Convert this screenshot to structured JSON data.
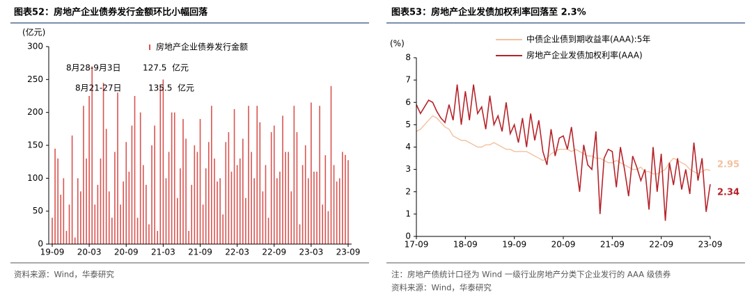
{
  "chart_data": [
    {
      "type": "bar",
      "title": "图表52：房地产企业债券发行金额环比小幅回落",
      "y_axis_label": "(亿元)",
      "categories": [
        "19-09",
        null,
        null,
        null,
        null,
        null,
        null,
        null,
        null,
        null,
        null,
        null,
        null,
        "20-03",
        null,
        null,
        null,
        null,
        null,
        null,
        null,
        null,
        null,
        null,
        null,
        null,
        "20-09",
        null,
        null,
        null,
        null,
        null,
        null,
        null,
        null,
        null,
        null,
        null,
        null,
        "21-03",
        null,
        null,
        null,
        null,
        null,
        null,
        null,
        null,
        null,
        null,
        null,
        null,
        "21-09",
        null,
        null,
        null,
        null,
        null,
        null,
        null,
        null,
        null,
        null,
        null,
        null,
        "22-03",
        null,
        null,
        null,
        null,
        null,
        null,
        null,
        null,
        null,
        null,
        null,
        null,
        "22-09",
        null,
        null,
        null,
        null,
        null,
        null,
        null,
        null,
        null,
        null,
        null,
        null,
        "23-03",
        null,
        null,
        null,
        null,
        null,
        null,
        null,
        null,
        null,
        null,
        null,
        null,
        "23-09"
      ],
      "series": [
        {
          "name": "房地产企业债券发行金额",
          "color": "#d9534f",
          "values": [
            40,
            145,
            130,
            75,
            100,
            20,
            60,
            165,
            10,
            100,
            80,
            210,
            130,
            225,
            270,
            60,
            90,
            130,
            245,
            175,
            80,
            40,
            140,
            230,
            60,
            95,
            155,
            110,
            180,
            225,
            40,
            200,
            120,
            90,
            30,
            150,
            180,
            20,
            240,
            250,
            100,
            140,
            200,
            200,
            70,
            115,
            190,
            160,
            20,
            90,
            150,
            140,
            190,
            60,
            115,
            155,
            210,
            130,
            95,
            100,
            45,
            155,
            170,
            110,
            205,
            120,
            130,
            160,
            70,
            210,
            140,
            100,
            210,
            185,
            80,
            120,
            40,
            170,
            180,
            100,
            110,
            195,
            140,
            140,
            80,
            210,
            170,
            30,
            120,
            150,
            100,
            215,
            110,
            110,
            210,
            60,
            135,
            50,
            240,
            120,
            95,
            100,
            140,
            135.5,
            127.5
          ]
        }
      ],
      "ylim": [
        0,
        300
      ],
      "yticks": [
        0,
        50,
        100,
        150,
        200,
        250,
        300
      ],
      "annotations": [
        {
          "label": "8月28-9月3日",
          "unit": "亿元"
        },
        {
          "label": "8月21-27日",
          "unit": "亿元"
        }
      ],
      "source": "资料来源：Wind，华泰研究"
    },
    {
      "type": "line",
      "title": "图表53：房地产企业发债加权利率回落至 2.3%",
      "y_axis_label": "(%)",
      "categories": [
        "17-09",
        null,
        null,
        null,
        null,
        null,
        null,
        null,
        null,
        null,
        null,
        null,
        "18-09",
        null,
        null,
        null,
        null,
        null,
        null,
        null,
        null,
        null,
        null,
        null,
        "19-09",
        null,
        null,
        null,
        null,
        null,
        null,
        null,
        null,
        null,
        null,
        null,
        "20-09",
        null,
        null,
        null,
        null,
        null,
        null,
        null,
        null,
        null,
        null,
        null,
        "21-09",
        null,
        null,
        null,
        null,
        null,
        null,
        null,
        null,
        null,
        null,
        null,
        "22-09",
        null,
        null,
        null,
        null,
        null,
        null,
        null,
        null,
        null,
        null,
        null,
        "23-09"
      ],
      "series": [
        {
          "name": "中债企业债到期收益率(AAA):5年",
          "color": "#f2c19e",
          "values": [
            4.7,
            4.8,
            5.0,
            5.2,
            5.4,
            5.3,
            5.1,
            4.9,
            4.8,
            4.5,
            4.4,
            4.3,
            4.3,
            4.2,
            4.1,
            4.0,
            4.0,
            4.1,
            4.1,
            4.2,
            4.1,
            4.0,
            3.9,
            3.9,
            3.8,
            3.8,
            3.8,
            3.8,
            3.7,
            3.6,
            3.5,
            3.4,
            3.5,
            3.7,
            3.8,
            3.9,
            3.9,
            3.9,
            3.8,
            3.9,
            3.8,
            3.7,
            3.6,
            3.6,
            3.5,
            3.5,
            3.4,
            3.3,
            3.3,
            3.4,
            3.3,
            3.2,
            3.1,
            3.0,
            3.0,
            3.1,
            2.9,
            2.9,
            2.8,
            2.8,
            2.9,
            3.0,
            3.3,
            3.5,
            3.4,
            3.3,
            3.2,
            3.0,
            2.9,
            2.8,
            2.9,
            3.0,
            2.95
          ]
        },
        {
          "name": "房地产企业发债加权利率(AAA)",
          "color": "#b5232a",
          "values": [
            5.9,
            5.5,
            5.8,
            6.1,
            6.0,
            5.6,
            5.3,
            5.1,
            5.9,
            5.2,
            6.8,
            5.0,
            6.5,
            5.2,
            6.8,
            5.5,
            5.8,
            4.8,
            6.3,
            5.0,
            5.4,
            4.7,
            6.0,
            4.6,
            5.0,
            4.2,
            5.3,
            4.0,
            5.5,
            4.3,
            5.2,
            3.8,
            3.2,
            4.8,
            3.6,
            4.4,
            4.5,
            3.9,
            4.9,
            3.4,
            2.0,
            4.1,
            3.2,
            3.0,
            4.7,
            1.0,
            3.5,
            3.9,
            3.8,
            2.2,
            4.0,
            3.0,
            1.8,
            3.6,
            3.1,
            2.5,
            3.0,
            1.2,
            4.0,
            2.0,
            3.7,
            0.7,
            3.3,
            2.3,
            3.5,
            2.1,
            3.0,
            1.9,
            4.2,
            2.5,
            3.5,
            1.1,
            2.34
          ]
        }
      ],
      "ylim": [
        0,
        8
      ],
      "yticks": [
        0,
        1,
        2,
        3,
        4,
        5,
        6,
        7,
        8
      ],
      "note": "注：房地产债统计口径为 Wind 一级行业房地产分类下企业发行的 AAA 级债券",
      "source": "资料来源：Wind，华泰研究"
    }
  ]
}
